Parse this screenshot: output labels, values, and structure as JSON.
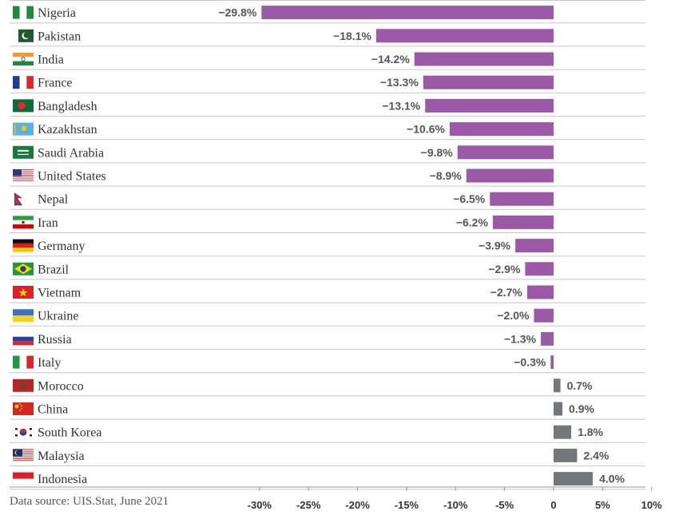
{
  "source_note": "Data source: UIS.Stat, June 2021",
  "colors": {
    "negative": "#9b59a8",
    "positive": "#73787c",
    "grid": "#c8c8c8",
    "axis": "#999999"
  },
  "chart_data": {
    "type": "bar",
    "orientation": "horizontal",
    "xlim": [
      -30,
      10
    ],
    "tick_values": [
      -30,
      -25,
      -20,
      -15,
      -10,
      -5,
      0,
      5,
      10
    ],
    "tick_labels": [
      "-30%",
      "-25%",
      "-20%",
      "-15%",
      "-10%",
      "-5%",
      "0",
      "5%",
      "10%"
    ],
    "categories": [
      "Nigeria",
      "Pakistan",
      "India",
      "France",
      "Bangladesh",
      "Kazakhstan",
      "Saudi Arabia",
      "United States",
      "Nepal",
      "Iran",
      "Germany",
      "Brazil",
      "Vietnam",
      "Ukraine",
      "Russia",
      "Italy",
      "Morocco",
      "China",
      "South Korea",
      "Malaysia",
      "Indonesia"
    ],
    "values": [
      -29.8,
      -18.1,
      -14.2,
      -13.3,
      -13.1,
      -10.6,
      -9.8,
      -8.9,
      -6.5,
      -6.2,
      -3.9,
      -2.9,
      -2.7,
      -2.0,
      -1.3,
      -0.3,
      0.7,
      0.9,
      1.8,
      2.4,
      4.0
    ],
    "value_labels": [
      "−29.8%",
      "−18.1%",
      "−14.2%",
      "−13.3%",
      "−13.1%",
      "−10.6%",
      "−9.8%",
      "−8.9%",
      "−6.5%",
      "−6.2%",
      "−3.9%",
      "−2.9%",
      "−2.7%",
      "−2.0%",
      "−1.3%",
      "−0.3%",
      "0.7%",
      "0.9%",
      "1.8%",
      "2.4%",
      "4.0%"
    ],
    "flag_icons": [
      "flag-nigeria-icon",
      "flag-pakistan-icon",
      "flag-india-icon",
      "flag-france-icon",
      "flag-bangladesh-icon",
      "flag-kazakhstan-icon",
      "flag-saudi-arabia-icon",
      "flag-united-states-icon",
      "flag-nepal-icon",
      "flag-iran-icon",
      "flag-germany-icon",
      "flag-brazil-icon",
      "flag-vietnam-icon",
      "flag-ukraine-icon",
      "flag-russia-icon",
      "flag-italy-icon",
      "flag-morocco-icon",
      "flag-china-icon",
      "flag-south-korea-icon",
      "flag-malaysia-icon",
      "flag-indonesia-icon"
    ],
    "grid": true,
    "legend": "none"
  }
}
